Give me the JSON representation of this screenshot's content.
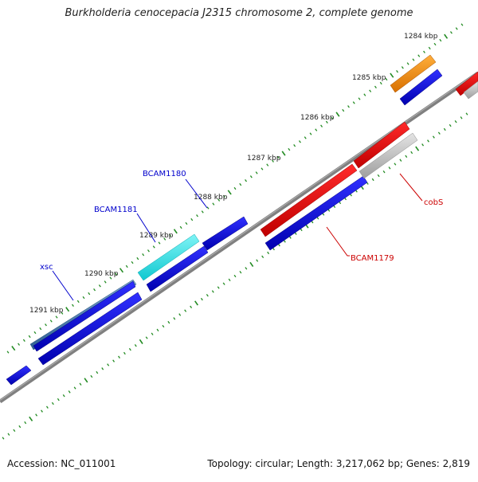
{
  "title": "Burkholderia cenocepacia J2315 chromosome 2, complete genome",
  "footer": {
    "accession": "Accession: NC_011001",
    "summary": "Topology: circular; Length: 3,217,062 bp; Genes: 2,819"
  },
  "colors": {
    "backbone": "#808080",
    "ticks": "#228b22",
    "red": "#ff0000",
    "blue": "#0000e6",
    "cyan": "#33e0e6",
    "steel": "#4a7fb5",
    "orange": "#ff8c00",
    "gray": "#bbbbbb",
    "gene_label_blue": "#0000cc",
    "gene_label_red": "#cc0000"
  },
  "scale": {
    "unit": "kbp",
    "ticks": [
      {
        "value": 1284,
        "label": "1284 kbp"
      },
      {
        "value": 1285,
        "label": "1285 kbp"
      },
      {
        "value": 1286,
        "label": "1286 kbp"
      },
      {
        "value": 1287,
        "label": "1287 kbp"
      },
      {
        "value": 1288,
        "label": "1288 kbp"
      },
      {
        "value": 1289,
        "label": "1289 kbp"
      },
      {
        "value": 1290,
        "label": "1290 kbp"
      },
      {
        "value": 1291,
        "label": "1291 kbp"
      }
    ]
  },
  "features": [
    {
      "name": "BCAM1181",
      "color": "cyan"
    },
    {
      "name": "BCAM1180",
      "color": "blue"
    },
    {
      "name": "xsc",
      "color": "steel"
    },
    {
      "name": "BCAM1179",
      "color": "red"
    },
    {
      "name": "cobS",
      "color": "red"
    }
  ]
}
